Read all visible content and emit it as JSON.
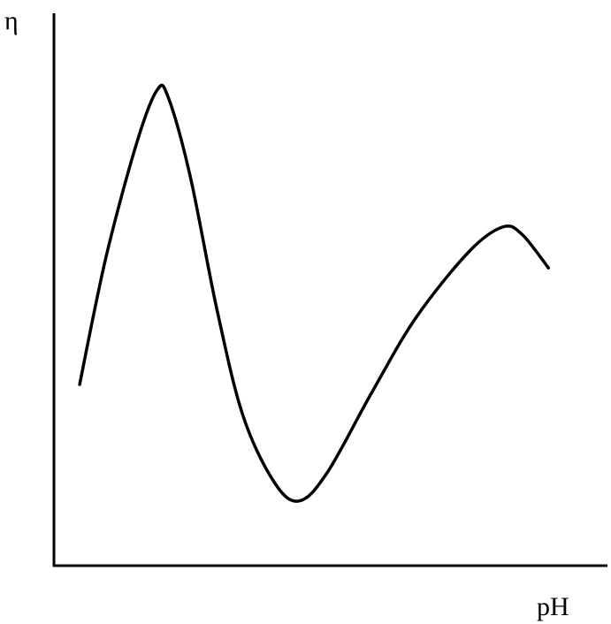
{
  "chart_data": {
    "type": "line",
    "y_label": "η",
    "x_label": "pH",
    "xlim": [
      0,
      100
    ],
    "ylim": [
      0,
      100
    ],
    "x": [
      4.8,
      9.6,
      15.2,
      18.8,
      20.8,
      24.8,
      29.6,
      34.3,
      39.9,
      44.4,
      49.5,
      57.5,
      65.5,
      75.1,
      81.2,
      84.7,
      89.5
    ],
    "values": [
      32.8,
      56,
      76.8,
      86.1,
      84.8,
      70.4,
      46.4,
      27.2,
      15.2,
      11.7,
      16.8,
      31.2,
      44.8,
      56.8,
      61.3,
      60,
      53.9
    ],
    "color": "#000000"
  }
}
